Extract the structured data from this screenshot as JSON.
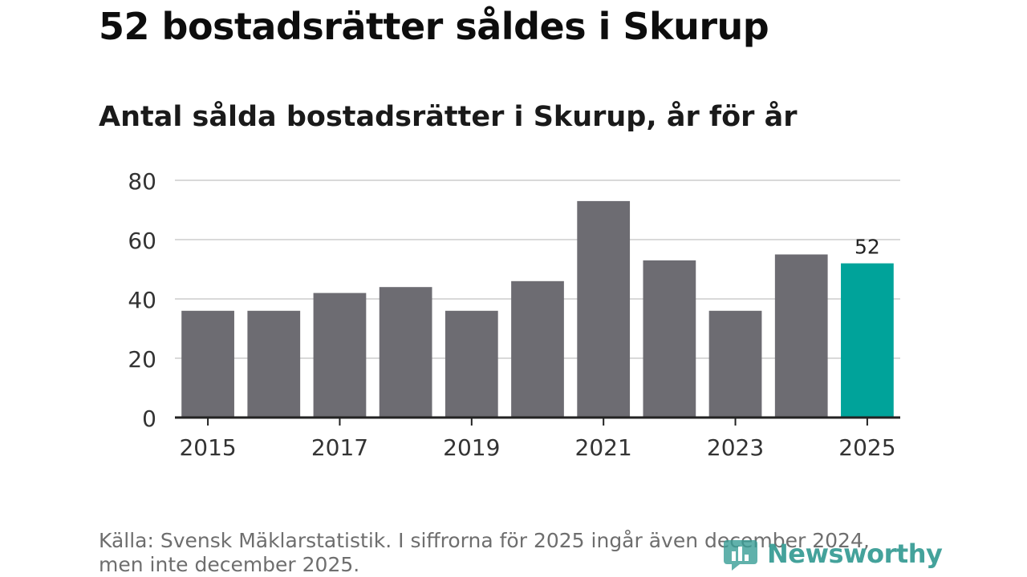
{
  "title": "52 bostadsrätter såldes i Skurup",
  "subtitle": "Antal sålda bostadsrätter i Skurup, år för år",
  "source": "Källa: Svensk Mäklarstatistik. I siffrorna för 2025 ingår även december 2024, men inte december 2025.",
  "logo": {
    "text": "Newsworthy",
    "icon": "newsworthy-logo-icon"
  },
  "colors": {
    "bar": "#6d6c72",
    "highlight": "#00a39a",
    "grid": "#d9d9d9",
    "axis": "#222222",
    "logo": "#3a9e96"
  },
  "chart_data": {
    "type": "bar",
    "title": "Antal sålda bostadsrätter i Skurup, år för år",
    "xlabel": "",
    "ylabel": "",
    "categories": [
      "2015",
      "2016",
      "2017",
      "2018",
      "2019",
      "2020",
      "2021",
      "2022",
      "2023",
      "2024",
      "2025"
    ],
    "values": [
      36,
      36,
      42,
      44,
      36,
      46,
      73,
      53,
      36,
      55,
      52
    ],
    "highlight_index": 10,
    "highlight_label": "52",
    "ylim": [
      0,
      80
    ],
    "yticks": [
      "0",
      "20",
      "40",
      "60",
      "80"
    ],
    "xtick_labels": [
      "2015",
      "2017",
      "2019",
      "2021",
      "2023",
      "2025"
    ],
    "grid": true
  }
}
